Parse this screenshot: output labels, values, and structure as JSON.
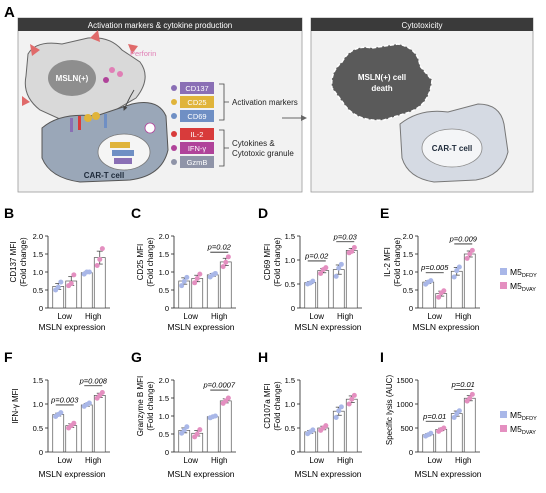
{
  "panel_a": {
    "letter": "A",
    "left_title": "Activation markers & cytokine production",
    "right_title": "Cytotoxicity",
    "target_label": "MSLN(+)",
    "perforin_label": "Perforin",
    "cart_label": "CAR-T cell",
    "marker_boxes": [
      "CD137",
      "CD25",
      "CD69",
      "IL-2",
      "IFN-γ",
      "GzmB"
    ],
    "activation_label": "Activation markers",
    "cytokine_label_line1": "Cytokines &",
    "cytokine_label_line2": "Cytotoxic granule",
    "death_label_line1": "MSLN(+) cell",
    "death_label_line2": "death",
    "cart_label_right": "CAR-T cell",
    "colors": {
      "title_bar": "#3a3a3a",
      "cd137": "#8a6fb5",
      "cd25": "#e0b43a",
      "cd69": "#6f8fc4",
      "il2": "#d83b3b",
      "ifng": "#b0439a",
      "gzmb": "#8f94a8",
      "perforin": "#e07fb5"
    }
  },
  "legend": {
    "dfdy": {
      "base": "M5",
      "sub": "DFDY"
    },
    "dvay": {
      "base": "M5",
      "sub": "DVAY"
    }
  },
  "colors": {
    "dfdy": "#a9b7e8",
    "dvay": "#e48fc0",
    "bar_edge": "#555555"
  },
  "chart_data": [
    {
      "panel": "B",
      "type": "bar",
      "ylabel_line1": "CD137 MFI",
      "ylabel_line2": "(Fold change)",
      "xlabel": "MSLN expression",
      "categories": [
        "Low",
        "High"
      ],
      "yticks": [
        0,
        0.5,
        1.0,
        1.5,
        2.0
      ],
      "ylim": [
        0,
        2.0
      ],
      "series": [
        {
          "name": "M5DFDY",
          "values": [
            0.6,
            0.98
          ],
          "points": [
            [
              0.5,
              0.58,
              0.72
            ],
            [
              0.94,
              1.0,
              1.0
            ]
          ]
        },
        {
          "name": "M5DVAY",
          "values": [
            0.75,
            1.4
          ],
          "points": [
            [
              0.62,
              0.68,
              0.92
            ],
            [
              1.18,
              1.35,
              1.65
            ]
          ]
        }
      ],
      "comparisons": []
    },
    {
      "panel": "C",
      "type": "bar",
      "ylabel_line1": "CD25 MFI",
      "ylabel_line2": "(Fold change)",
      "xlabel": "MSLN expression",
      "categories": [
        "Low",
        "High"
      ],
      "yticks": [
        0,
        0.5,
        1.0,
        1.5,
        2.0
      ],
      "ylim": [
        0,
        2.0
      ],
      "series": [
        {
          "name": "M5DFDY",
          "values": [
            0.75,
            0.92
          ],
          "points": [
            [
              0.62,
              0.74,
              0.85
            ],
            [
              0.86,
              0.92,
              0.96
            ]
          ]
        },
        {
          "name": "M5DVAY",
          "values": [
            0.82,
            1.28
          ],
          "points": [
            [
              0.7,
              0.82,
              0.94
            ],
            [
              1.15,
              1.27,
              1.42
            ]
          ]
        }
      ],
      "comparisons": [
        {
          "group": 1,
          "label": "p=0.02",
          "y": 1.55
        }
      ]
    },
    {
      "panel": "D",
      "type": "bar",
      "ylabel_line1": "CD69 MFI",
      "ylabel_line2": "(Fold change)",
      "xlabel": "MSLN expression",
      "categories": [
        "Low",
        "High"
      ],
      "yticks": [
        0,
        0.5,
        1.0,
        1.5
      ],
      "ylim": [
        0,
        1.5
      ],
      "series": [
        {
          "name": "M5DFDY",
          "values": [
            0.53,
            0.8
          ],
          "points": [
            [
              0.5,
              0.52,
              0.56
            ],
            [
              0.66,
              0.83,
              0.91
            ]
          ]
        },
        {
          "name": "M5DVAY",
          "values": [
            0.78,
            1.2
          ],
          "points": [
            [
              0.72,
              0.8,
              0.84
            ],
            [
              1.15,
              1.18,
              1.26
            ]
          ]
        }
      ],
      "comparisons": [
        {
          "group": 0,
          "label": "p=0.02",
          "y": 0.98
        },
        {
          "group": 1,
          "label": "p=0.03",
          "y": 1.38
        }
      ]
    },
    {
      "panel": "E",
      "type": "bar",
      "ylabel_line1": "IL-2 MFI",
      "ylabel_line2": "(Fold change)",
      "xlabel": "MSLN expression",
      "categories": [
        "Low",
        "High"
      ],
      "yticks": [
        0,
        0.5,
        1.0,
        1.5,
        2.0
      ],
      "ylim": [
        0,
        2.0
      ],
      "series": [
        {
          "name": "M5DFDY",
          "values": [
            0.72,
            1.02
          ],
          "points": [
            [
              0.66,
              0.72,
              0.76
            ],
            [
              0.86,
              1.04,
              1.14
            ]
          ]
        },
        {
          "name": "M5DVAY",
          "values": [
            0.4,
            1.5
          ],
          "points": [
            [
              0.3,
              0.42,
              0.48
            ],
            [
              1.38,
              1.5,
              1.6
            ]
          ]
        }
      ],
      "comparisons": [
        {
          "group": 0,
          "label": "p=0.005",
          "y": 0.98
        },
        {
          "group": 1,
          "label": "p=0.009",
          "y": 1.78
        }
      ]
    },
    {
      "panel": "F",
      "type": "bar",
      "ylabel_line1": "IFN-γ MFI",
      "ylabel_line2": "",
      "xlabel": "MSLN expression",
      "categories": [
        "Low",
        "High"
      ],
      "yticks": [
        0,
        0.5,
        1.0,
        1.5
      ],
      "ylim": [
        0,
        1.5
      ],
      "series": [
        {
          "name": "M5DFDY",
          "values": [
            0.78,
            0.98
          ],
          "points": [
            [
              0.74,
              0.78,
              0.82
            ],
            [
              0.95,
              0.99,
              1.02
            ]
          ]
        },
        {
          "name": "M5DVAY",
          "values": [
            0.55,
            1.18
          ],
          "points": [
            [
              0.5,
              0.55,
              0.6
            ],
            [
              1.12,
              1.18,
              1.24
            ]
          ]
        }
      ],
      "comparisons": [
        {
          "group": 0,
          "label": "p=0.003",
          "y": 0.98
        },
        {
          "group": 1,
          "label": "p=0.008",
          "y": 1.38
        }
      ]
    },
    {
      "panel": "G",
      "type": "bar",
      "ylabel_line1": "Granzyme B MFI",
      "ylabel_line2": "(Fold change)",
      "xlabel": "MSLN expression",
      "categories": [
        "Low",
        "High"
      ],
      "yticks": [
        0,
        0.5,
        1.0,
        1.5,
        2.0
      ],
      "ylim": [
        0,
        2.0
      ],
      "series": [
        {
          "name": "M5DFDY",
          "values": [
            0.6,
            0.98
          ],
          "points": [
            [
              0.52,
              0.6,
              0.7
            ],
            [
              0.95,
              0.98,
              1.0
            ]
          ]
        },
        {
          "name": "M5DVAY",
          "values": [
            0.52,
            1.42
          ],
          "points": [
            [
              0.42,
              0.5,
              0.62
            ],
            [
              1.35,
              1.42,
              1.5
            ]
          ]
        }
      ],
      "comparisons": [
        {
          "group": 1,
          "label": "p=0.0007",
          "y": 1.72
        }
      ]
    },
    {
      "panel": "H",
      "type": "bar",
      "ylabel_line1": "CD107a MFI",
      "ylabel_line2": "(Fold change)",
      "xlabel": "MSLN expression",
      "categories": [
        "Low",
        "High"
      ],
      "yticks": [
        0,
        0.5,
        1.0,
        1.5
      ],
      "ylim": [
        0,
        1.5
      ],
      "series": [
        {
          "name": "M5DFDY",
          "values": [
            0.42,
            0.85
          ],
          "points": [
            [
              0.38,
              0.42,
              0.46
            ],
            [
              0.72,
              0.86,
              0.94
            ]
          ]
        },
        {
          "name": "M5DVAY",
          "values": [
            0.5,
            1.1
          ],
          "points": [
            [
              0.45,
              0.5,
              0.55
            ],
            [
              1.0,
              1.1,
              1.18
            ]
          ]
        }
      ],
      "comparisons": []
    },
    {
      "panel": "I",
      "type": "bar",
      "ylabel_line1": "Specific lysis (AUC)",
      "ylabel_line2": "",
      "xlabel": "MSLN expression",
      "categories": [
        "Low",
        "High"
      ],
      "yticks": [
        0,
        500,
        1000,
        1500
      ],
      "ylim": [
        0,
        1500
      ],
      "series": [
        {
          "name": "M5DFDY",
          "values": [
            360,
            800
          ],
          "points": [
            [
              330,
              360,
              390
            ],
            [
              720,
              800,
              860
            ]
          ]
        },
        {
          "name": "M5DVAY",
          "values": [
            470,
            1120
          ],
          "points": [
            [
              430,
              470,
              500
            ],
            [
              1060,
              1120,
              1200
            ]
          ]
        }
      ],
      "comparisons": [
        {
          "group": 0,
          "label": "p=0.01",
          "y": 640
        },
        {
          "group": 1,
          "label": "p=0.01",
          "y": 1300
        }
      ]
    }
  ]
}
